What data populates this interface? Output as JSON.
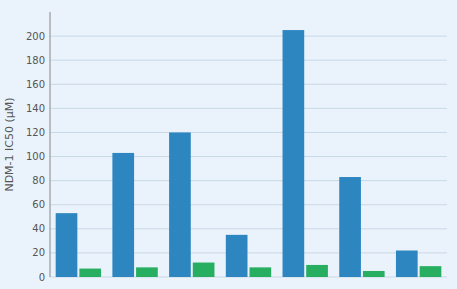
{
  "chart_data": {
    "type": "bar",
    "categories": [
      null,
      null,
      null,
      null,
      null,
      null,
      null
    ],
    "series": [
      {
        "color": "#2E86C1",
        "values": [
          53,
          103,
          120,
          35,
          205,
          83,
          22
        ]
      },
      {
        "color": "#27AE60",
        "values": [
          7,
          8,
          12,
          8,
          10,
          5,
          9
        ]
      }
    ],
    "ylabel": "NDM-1 IC50 (μM)",
    "ylim": [
      0,
      220
    ],
    "yticks": [
      0,
      20,
      40,
      60,
      80,
      100,
      120,
      140,
      160,
      180,
      200
    ],
    "grid": true,
    "tick_labels": "y"
  }
}
